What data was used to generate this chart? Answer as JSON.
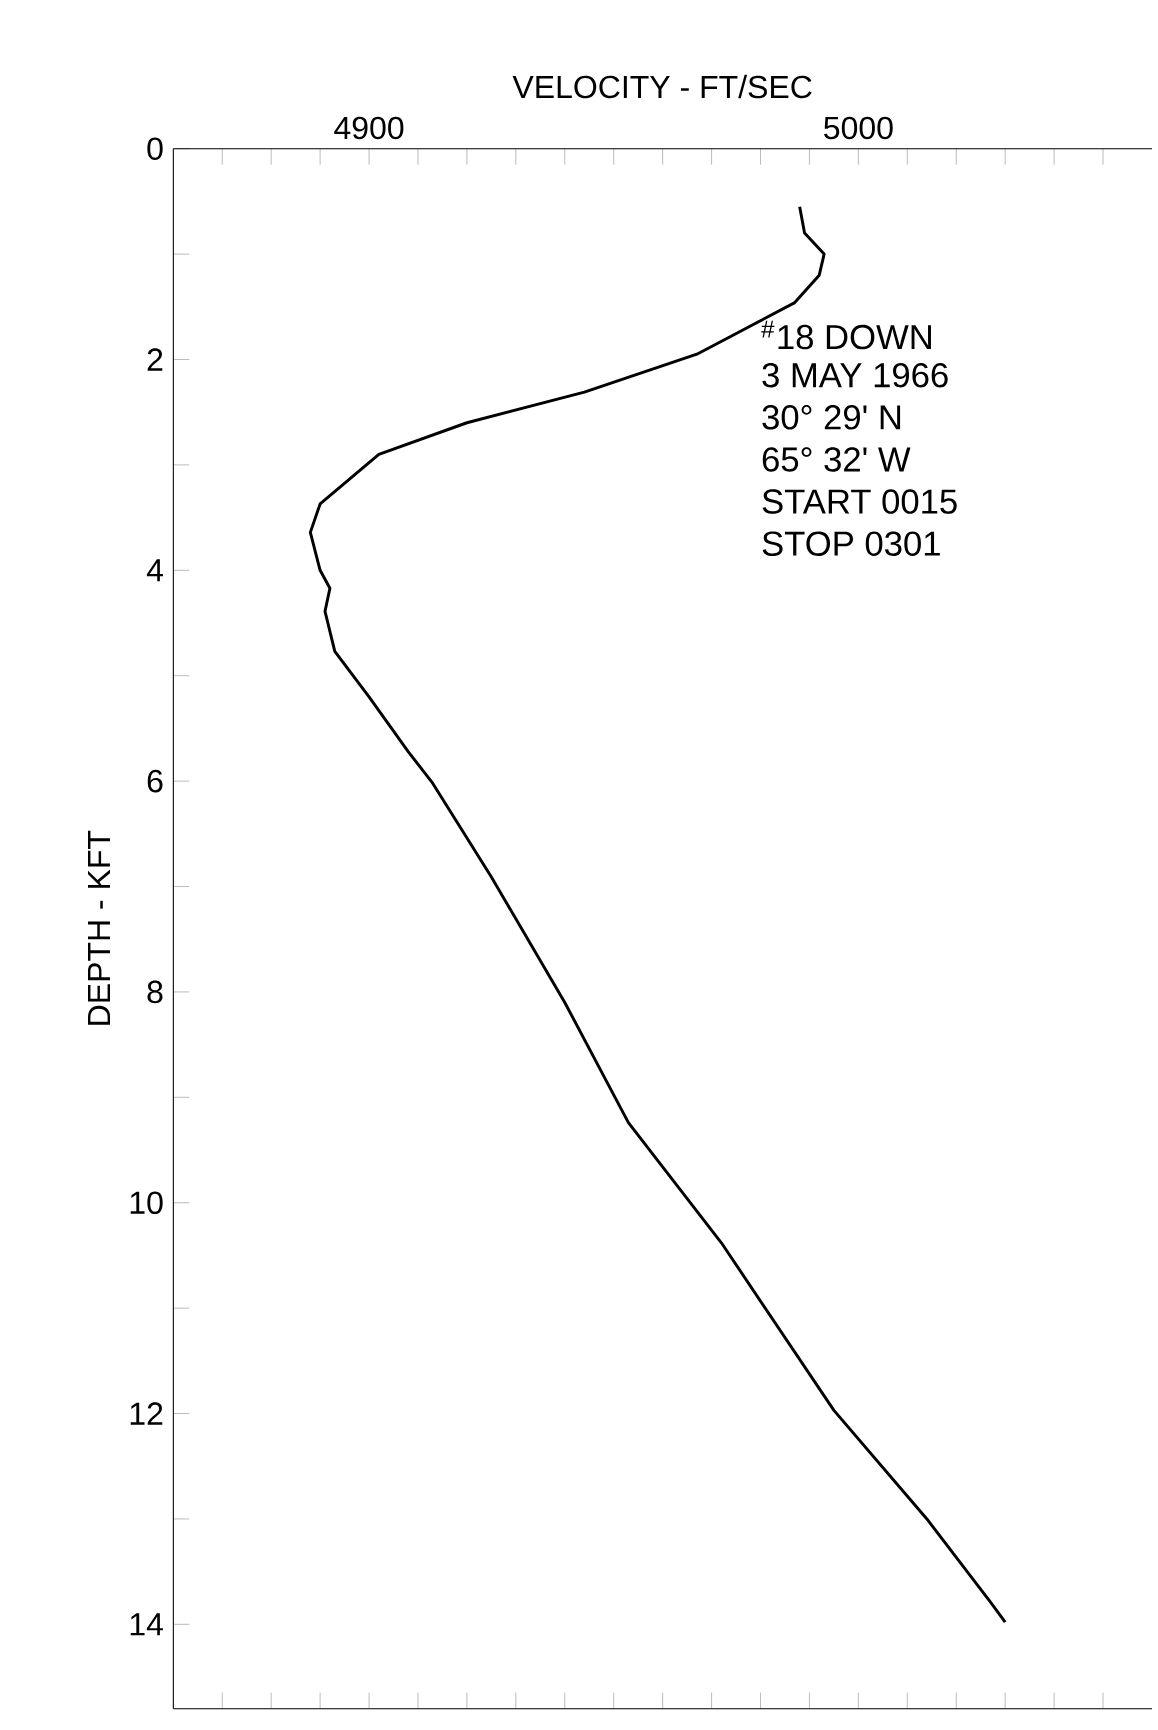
{
  "chart_data": {
    "type": "line",
    "xlabel": "VELOCITY - FT/SEC",
    "ylabel": "DEPTH - KFT",
    "xlim": [
      4860,
      5060
    ],
    "ylim": [
      14.8,
      0
    ],
    "xticks": [
      {
        "value": 4870,
        "label": null
      },
      {
        "value": 4880,
        "label": null
      },
      {
        "value": 4890,
        "label": null
      },
      4900,
      {
        "value": 4910,
        "label": null
      },
      {
        "value": 4920,
        "label": null
      },
      {
        "value": 4930,
        "label": null
      },
      {
        "value": 4940,
        "label": null
      },
      {
        "value": 4950,
        "label": null
      },
      {
        "value": 4960,
        "label": null
      },
      {
        "value": 4970,
        "label": null
      },
      {
        "value": 4980,
        "label": null
      },
      {
        "value": 4990,
        "label": null
      },
      5000,
      {
        "value": 5010,
        "label": null
      },
      {
        "value": 5020,
        "label": null
      },
      {
        "value": 5030,
        "label": null
      },
      {
        "value": 5040,
        "label": null
      },
      {
        "value": 5050,
        "label": null
      }
    ],
    "yticks": [
      0,
      {
        "value": 1,
        "label": null
      },
      2,
      {
        "value": 3,
        "label": null
      },
      4,
      {
        "value": 5,
        "label": null
      },
      6,
      {
        "value": 7,
        "label": null
      },
      8,
      {
        "value": 9,
        "label": null
      },
      10,
      {
        "value": 11,
        "label": null
      },
      12,
      {
        "value": 13,
        "label": null
      },
      14
    ],
    "series": [
      {
        "color": "#000000",
        "x": [
          4988,
          4989,
          4993,
          4992,
          4987,
          4967,
          4944,
          4920,
          4902,
          4890,
          4888,
          4890,
          4892,
          4891,
          4893,
          4900,
          4908,
          4913,
          4925,
          4940,
          4953,
          4972,
          4995,
          5014,
          5027,
          5030
        ],
        "values": [
          0.55,
          0.8,
          1.0,
          1.2,
          1.46,
          1.95,
          2.31,
          2.6,
          2.9,
          3.37,
          3.64,
          4.0,
          4.17,
          4.39,
          4.77,
          5.2,
          5.72,
          6.02,
          6.91,
          8.1,
          9.24,
          10.38,
          11.97,
          13.0,
          13.79,
          13.98
        ]
      }
    ],
    "annotations": [
      "$^{#}$18 DOWN",
      "3 MAY 1966",
      "30° 29' N",
      "65° 32' W",
      "START 0015",
      "STOP 0301"
    ]
  }
}
